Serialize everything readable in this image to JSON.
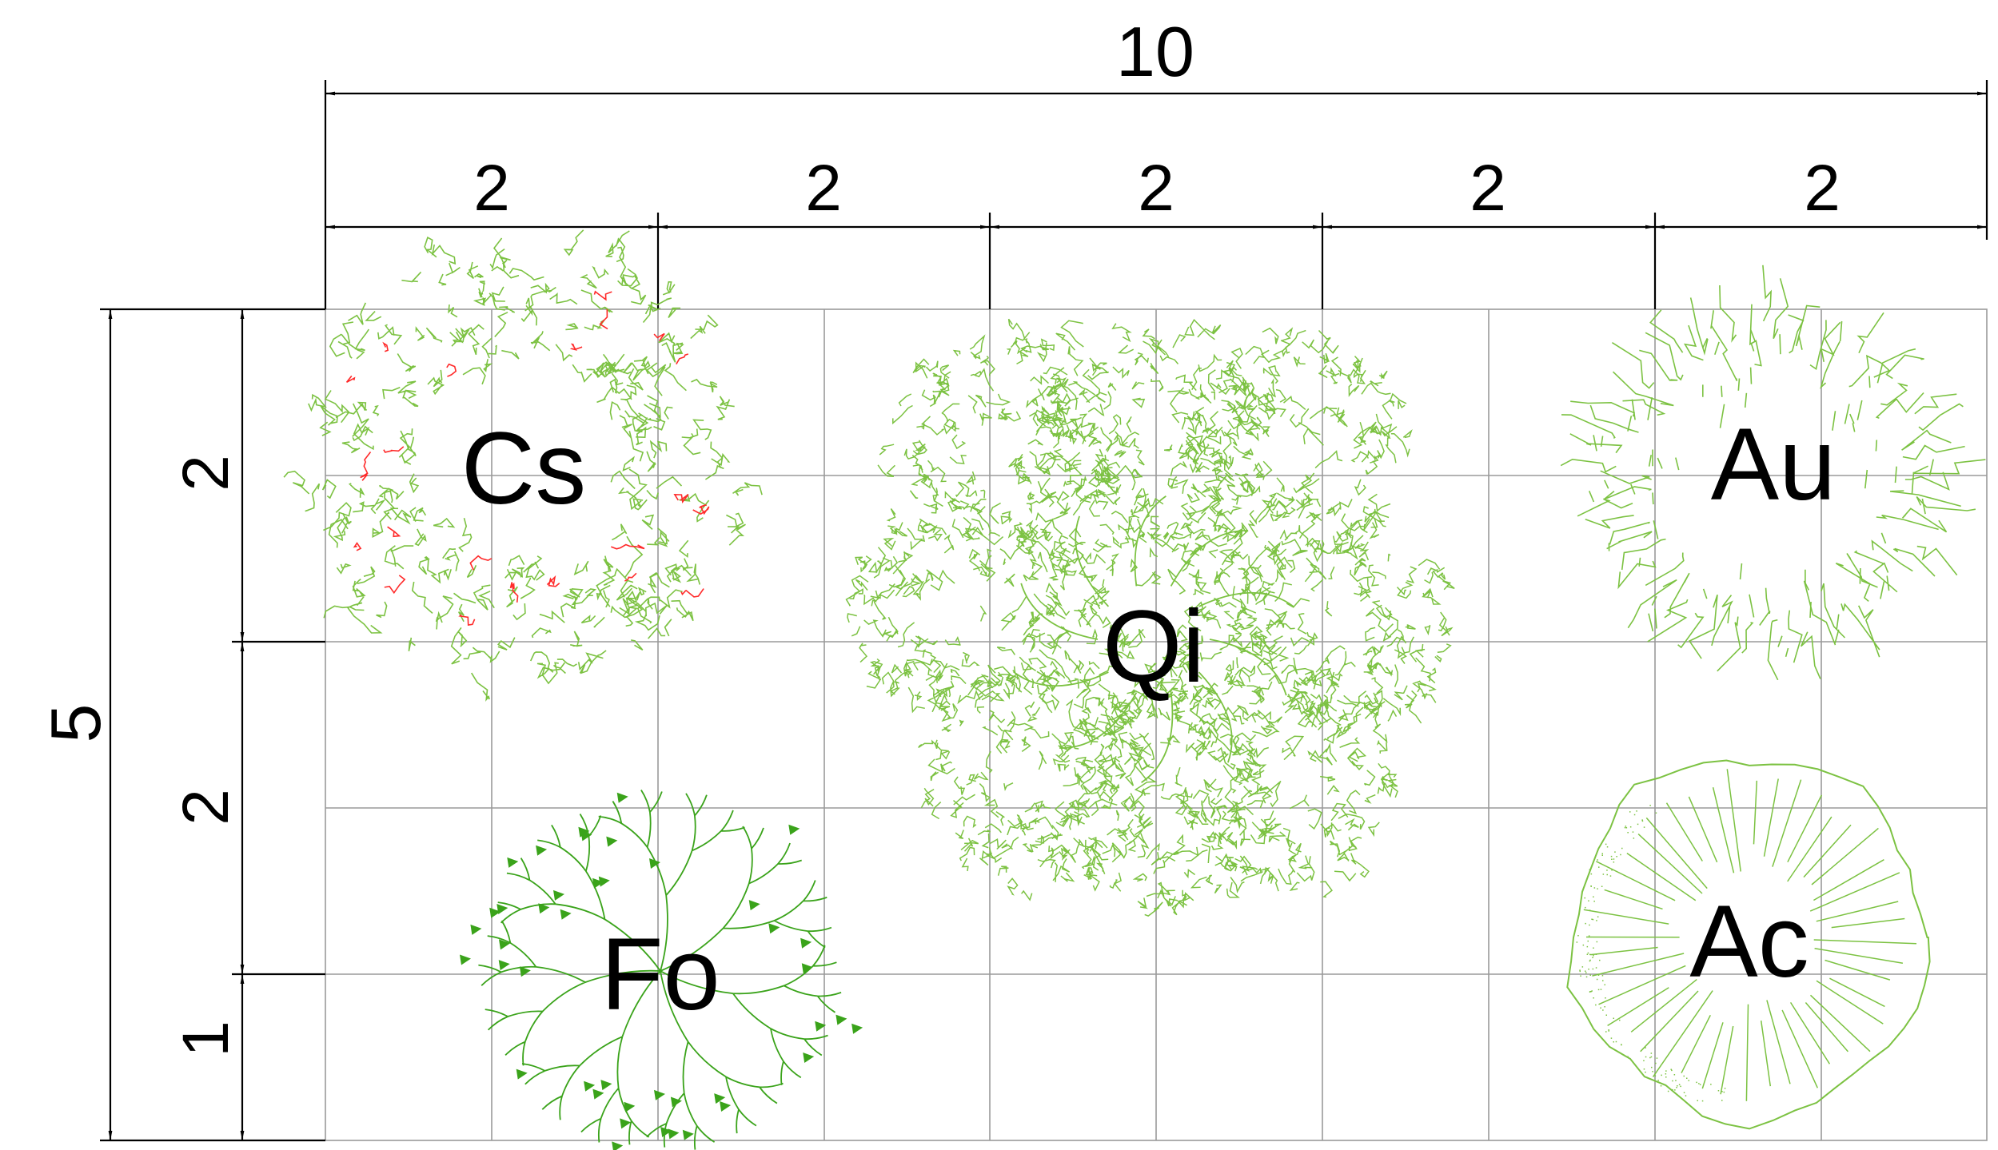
{
  "dimensions": {
    "total_width": "10",
    "column_widths": [
      "2",
      "2",
      "2",
      "2",
      "2"
    ],
    "total_height": "5",
    "row_heights": [
      "2",
      "2",
      "1"
    ]
  },
  "plants": [
    {
      "code": "Cs",
      "color": "#7cc242",
      "accent": "#ff2a2a",
      "symbol": "blob-ring-tree-symbol"
    },
    {
      "code": "Qi",
      "color": "#7cc242",
      "symbol": "dense-leaf-tree-symbol"
    },
    {
      "code": "Au",
      "color": "#7cc242",
      "symbol": "zigzag-crown-tree-symbol"
    },
    {
      "code": "Fo",
      "color": "#3aa31a",
      "symbol": "branching-tree-symbol"
    },
    {
      "code": "Ac",
      "color": "#7cc242",
      "symbol": "radial-crown-tree-symbol"
    }
  ],
  "colors": {
    "dimension_lines": "#000000",
    "grid": "#9a9a9a",
    "background": "#ffffff"
  }
}
